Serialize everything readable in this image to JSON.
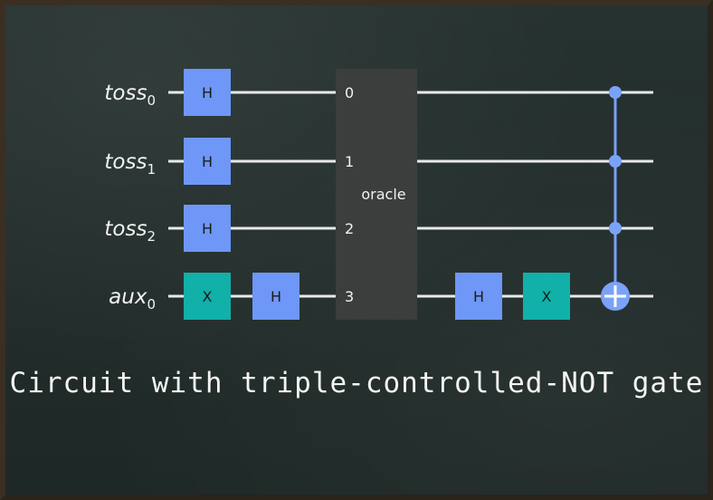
{
  "qubits": [
    {
      "name": "toss",
      "index": "0"
    },
    {
      "name": "toss",
      "index": "1"
    },
    {
      "name": "toss",
      "index": "2"
    },
    {
      "name": "aux",
      "index": "0"
    }
  ],
  "gates": {
    "h": "H",
    "x": "X"
  },
  "oracle": {
    "label": "oracle",
    "ports": [
      "0",
      "1",
      "2",
      "3"
    ]
  },
  "caption": "Circuit with triple-controlled-NOT gate",
  "colors": {
    "h_gate": "#6e97f7",
    "x_gate": "#11b0a8",
    "oracle_box": "#3b3e3d",
    "control": "#7aa2f8",
    "wire": "#e9e9e9"
  },
  "icons": {
    "control_dot": "control-dot-icon",
    "target": "target-plus-icon"
  }
}
